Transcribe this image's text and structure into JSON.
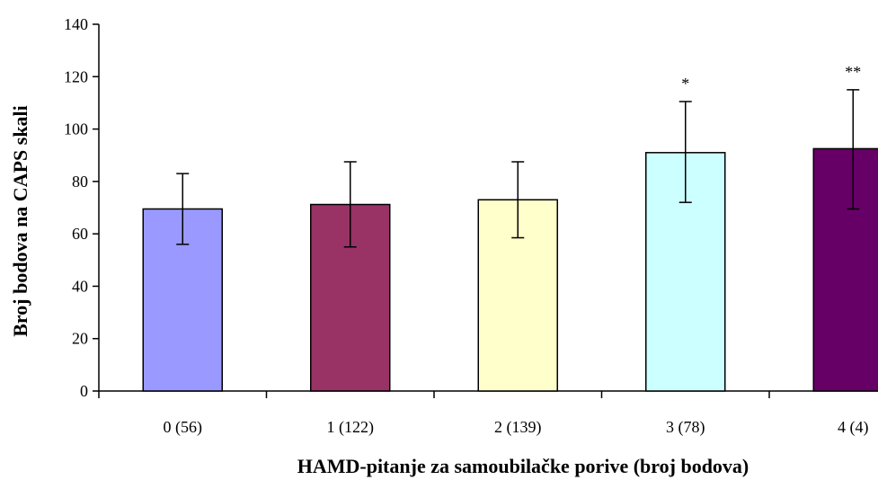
{
  "chart_data": {
    "type": "bar",
    "title": "",
    "xlabel": "HAMD-pitanje za samoubilačke porive (broj bodova)",
    "ylabel": "Broj bodova na CAPS skali",
    "ylim": [
      0,
      140
    ],
    "yticks": [
      0,
      20,
      40,
      60,
      80,
      100,
      120,
      140
    ],
    "grid": false,
    "legend": "none",
    "categories": [
      "0 (56)",
      "1 (122)",
      "2 (139)",
      "3 (78)",
      "4 (4)"
    ],
    "values": [
      69.5,
      71.2,
      73.0,
      91.0,
      92.5
    ],
    "error_low": [
      56,
      55,
      58.5,
      72,
      69.5
    ],
    "error_high": [
      83,
      87.5,
      87.5,
      110.5,
      115
    ],
    "annotations": [
      "",
      "",
      "",
      "*",
      "**"
    ],
    "colors": [
      "#9999FF",
      "#993366",
      "#FFFFCC",
      "#CCFFFF",
      "#660066"
    ]
  }
}
